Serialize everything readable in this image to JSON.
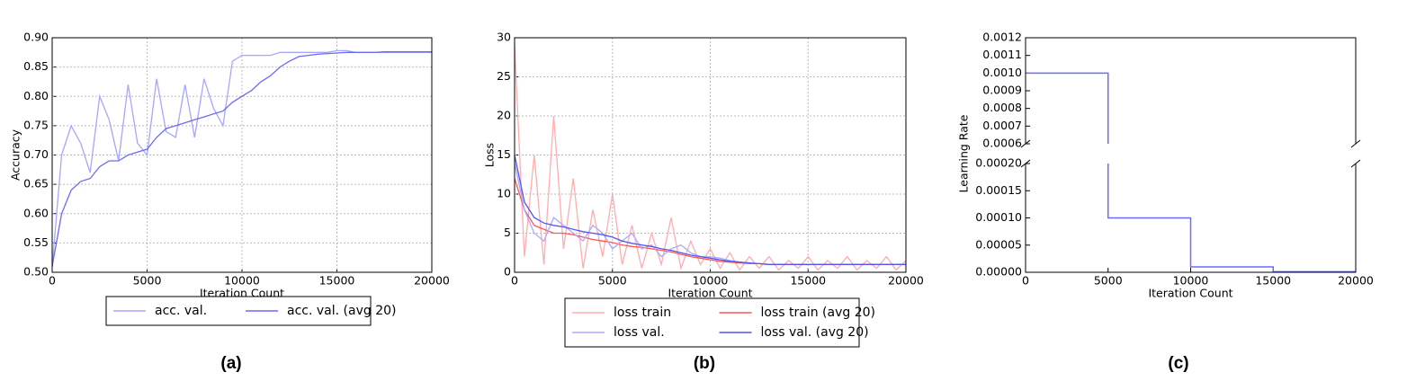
{
  "chart_data": [
    {
      "type": "line",
      "caption": "(a)",
      "x_label": "Iteration Count",
      "y_label": "Accuracy",
      "x": [
        0,
        500,
        1000,
        1500,
        2000,
        2500,
        3000,
        3500,
        4000,
        4500,
        5000,
        5500,
        6000,
        6500,
        7000,
        7500,
        8000,
        8500,
        9000,
        9500,
        10000,
        10500,
        11000,
        11500,
        12000,
        12500,
        13000,
        13500,
        14000,
        14500,
        15000,
        15500,
        16000,
        16500,
        17000,
        17500,
        18000,
        18500,
        19000,
        19500,
        20000
      ],
      "xlim": [
        0,
        20000
      ],
      "xticks": [
        0,
        5000,
        10000,
        15000,
        20000
      ],
      "ylim": [
        0.5,
        0.9
      ],
      "yticks": [
        {
          "value": 0.5,
          "label": "0.50"
        },
        {
          "value": 0.55,
          "label": "0.55"
        },
        {
          "value": 0.6,
          "label": "0.60"
        },
        {
          "value": 0.65,
          "label": "0.65"
        },
        {
          "value": 0.7,
          "label": "0.70"
        },
        {
          "value": 0.75,
          "label": "0.75"
        },
        {
          "value": 0.8,
          "label": "0.80"
        },
        {
          "value": 0.85,
          "label": "0.85"
        },
        {
          "value": 0.9,
          "label": "0.90"
        }
      ],
      "grid": true,
      "legend": "below",
      "legend_columns": 2,
      "series": [
        {
          "name": "acc. val.",
          "color": "#a6a6ff",
          "values": [
            0.51,
            0.7,
            0.75,
            0.72,
            0.67,
            0.8,
            0.76,
            0.69,
            0.82,
            0.72,
            0.7,
            0.83,
            0.74,
            0.73,
            0.82,
            0.73,
            0.83,
            0.78,
            0.75,
            0.86,
            0.87,
            0.87,
            0.87,
            0.87,
            0.875,
            0.875,
            0.875,
            0.875,
            0.875,
            0.875,
            0.878,
            0.878,
            0.875,
            0.875,
            0.875,
            0.875,
            0.875,
            0.875,
            0.875,
            0.875,
            0.875
          ]
        },
        {
          "name": "acc. val. (avg 20)",
          "color": "#6b6bf0",
          "values": [
            0.51,
            0.6,
            0.64,
            0.655,
            0.66,
            0.68,
            0.69,
            0.69,
            0.7,
            0.705,
            0.71,
            0.73,
            0.745,
            0.75,
            0.755,
            0.76,
            0.765,
            0.77,
            0.775,
            0.79,
            0.8,
            0.81,
            0.825,
            0.835,
            0.85,
            0.86,
            0.868,
            0.87,
            0.872,
            0.873,
            0.874,
            0.875,
            0.875,
            0.875,
            0.875,
            0.876,
            0.876,
            0.876,
            0.876,
            0.876,
            0.876
          ]
        }
      ]
    },
    {
      "type": "line",
      "caption": "(b)",
      "x_label": "Iteration Count",
      "y_label": "Loss",
      "x": [
        0,
        500,
        1000,
        1500,
        2000,
        2500,
        3000,
        3500,
        4000,
        4500,
        5000,
        5500,
        6000,
        6500,
        7000,
        7500,
        8000,
        8500,
        9000,
        9500,
        10000,
        10500,
        11000,
        11500,
        12000,
        12500,
        13000,
        13500,
        14000,
        14500,
        15000,
        15500,
        16000,
        16500,
        17000,
        17500,
        18000,
        18500,
        19000,
        19500,
        20000
      ],
      "xlim": [
        0,
        20000
      ],
      "xticks": [
        0,
        5000,
        10000,
        15000,
        20000
      ],
      "ylim": [
        0,
        30
      ],
      "yticks": [
        0,
        5,
        10,
        15,
        20,
        25,
        30
      ],
      "grid": true,
      "legend": "below",
      "legend_columns": 2,
      "series": [
        {
          "name": "loss train",
          "color": "#ffadad",
          "values": [
            29,
            2,
            15,
            1,
            20,
            3,
            12,
            0.5,
            8,
            2,
            10,
            1,
            6,
            0.5,
            5,
            1,
            7,
            0.5,
            4,
            1,
            3,
            0.5,
            2.5,
            0.3,
            2,
            0.5,
            2,
            0.3,
            1.5,
            0.5,
            2,
            0.3,
            1.5,
            0.5,
            2,
            0.3,
            1.5,
            0.5,
            2,
            0.3,
            1.5
          ]
        },
        {
          "name": "loss train (avg 20)",
          "color": "#ff5555",
          "values": [
            12,
            8,
            6,
            5.5,
            5,
            5,
            4.8,
            4.5,
            4.2,
            4,
            3.8,
            3.5,
            3.3,
            3.2,
            3,
            2.8,
            2.6,
            2.3,
            2,
            1.8,
            1.6,
            1.4,
            1.3,
            1.2,
            1.1,
            1.1,
            1,
            1,
            1,
            1,
            1,
            1,
            1,
            1,
            1,
            1,
            1,
            1,
            1,
            1,
            1
          ]
        },
        {
          "name": "loss val.",
          "color": "#aaaaff",
          "values": [
            14,
            8,
            5,
            4,
            7,
            6,
            5,
            4,
            6,
            5,
            3,
            4,
            5,
            3,
            3.5,
            2,
            3,
            3.5,
            2.5,
            2,
            2,
            1.8,
            1.5,
            1.3,
            1.2,
            1.1,
            1,
            1,
            1,
            1,
            1,
            1,
            1,
            1,
            1,
            1,
            1,
            1,
            1,
            1,
            1
          ]
        },
        {
          "name": "loss val. (avg 20)",
          "color": "#5555ee",
          "values": [
            15,
            9,
            7,
            6.3,
            6,
            5.8,
            5.5,
            5.2,
            5,
            4.8,
            4.5,
            4,
            3.7,
            3.5,
            3.3,
            3,
            2.8,
            2.5,
            2.2,
            2,
            1.8,
            1.6,
            1.4,
            1.3,
            1.2,
            1.1,
            1,
            1,
            1,
            1,
            1,
            1,
            1,
            1,
            1,
            1,
            1,
            1,
            1,
            1,
            1
          ]
        }
      ]
    },
    {
      "type": "step",
      "caption": "(c)",
      "x_label": "Iteration Count",
      "y_label": "Learning Rate",
      "x": [
        0,
        5000,
        10000,
        15000,
        20000
      ],
      "xlim": [
        0,
        20000
      ],
      "xticks": [
        0,
        5000,
        10000,
        15000,
        20000
      ],
      "broken_axis": true,
      "ylim_upper": [
        0.0006,
        0.0012
      ],
      "yticks_upper": [
        0.0006,
        0.0007,
        0.0008,
        0.0009,
        {
          "value": 0.001,
          "label": "0.0010"
        },
        0.0011,
        0.0012
      ],
      "ylim": [
        0,
        0.0002
      ],
      "yticks": [
        {
          "value": 0,
          "label": "0.00000"
        },
        {
          "value": 5e-05,
          "label": "0.00005"
        },
        {
          "value": 0.0001,
          "label": "0.00010"
        },
        {
          "value": 0.00015,
          "label": "0.00015"
        },
        {
          "value": 0.0002,
          "label": "0.00020"
        }
      ],
      "grid": false,
      "color": "#6b6bff",
      "values": [
        0.001,
        0.0001,
        1e-05,
        1e-06,
        1e-06
      ]
    }
  ]
}
